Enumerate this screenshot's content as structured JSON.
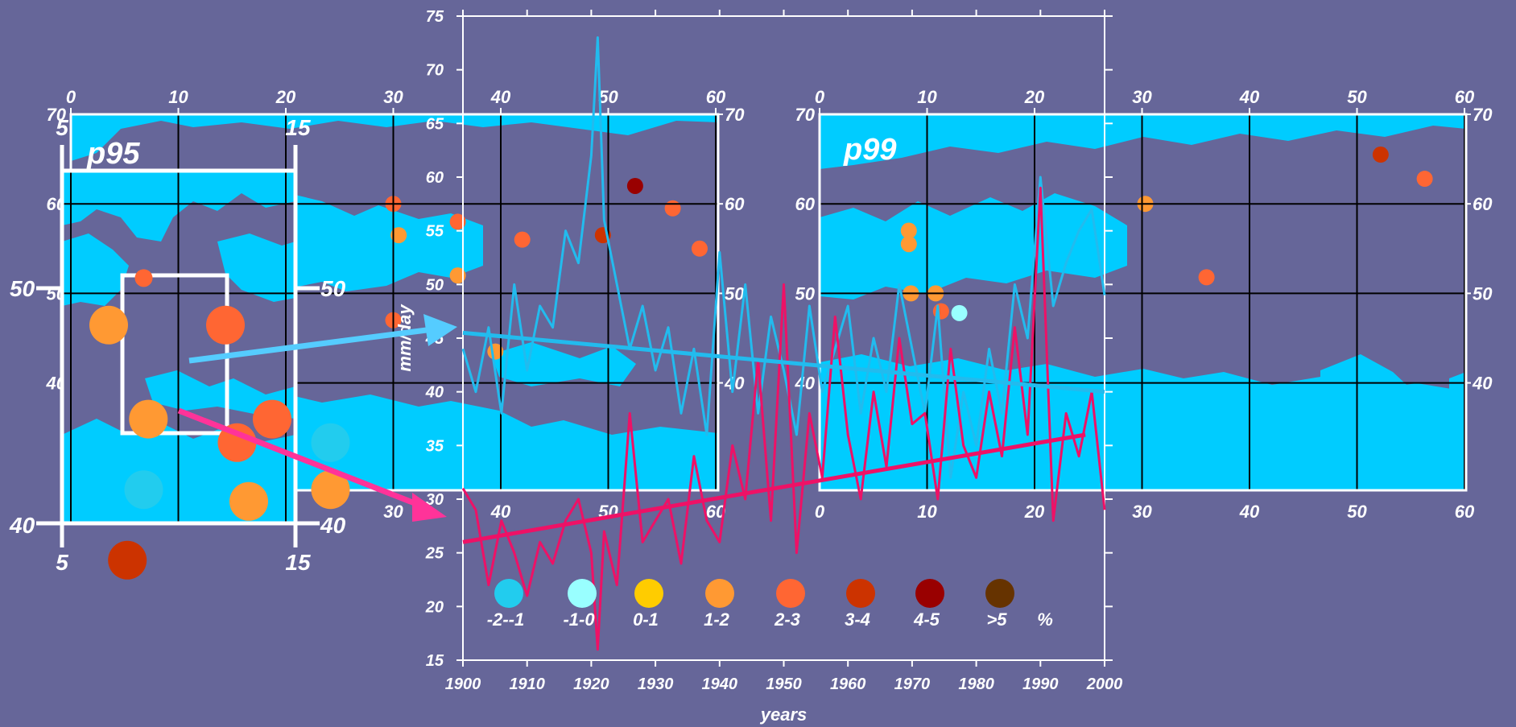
{
  "chart_data": [
    {
      "type": "line",
      "ylabel": "mm/day",
      "xlabel": "years",
      "xlim": [
        1900,
        2000
      ],
      "ylim": [
        15,
        75
      ],
      "x_ticks": [
        1900,
        1910,
        1920,
        1930,
        1940,
        1950,
        1960,
        1970,
        1980,
        1990,
        2000
      ],
      "y_ticks": [
        15,
        20,
        25,
        30,
        35,
        40,
        45,
        50,
        55,
        60,
        65,
        70,
        75
      ],
      "series": [
        {
          "name": "p95",
          "color": "#22bbee",
          "x": [
            1900,
            1902,
            1904,
            1906,
            1908,
            1910,
            1912,
            1914,
            1916,
            1918,
            1920,
            1921,
            1922,
            1924,
            1926,
            1928,
            1930,
            1932,
            1934,
            1936,
            1938,
            1940,
            1942,
            1944,
            1946,
            1948,
            1950,
            1952,
            1954,
            1956,
            1958,
            1960,
            1962,
            1964,
            1966,
            1968,
            1970,
            1972,
            1974,
            1976,
            1978,
            1980,
            1982,
            1984,
            1986,
            1988,
            1990,
            1992,
            1994,
            1996,
            1998,
            2000
          ],
          "values": [
            44,
            40,
            46,
            38,
            50,
            42,
            48,
            46,
            55,
            52,
            62,
            73,
            56,
            50,
            44,
            48,
            42,
            46,
            38,
            44,
            36,
            53,
            40,
            50,
            38,
            47,
            42,
            36,
            48,
            40,
            44,
            48,
            38,
            45,
            40,
            50,
            44,
            38,
            48,
            32,
            40,
            35,
            44,
            38,
            50,
            45,
            60,
            48,
            52,
            55,
            57,
            49
          ]
        },
        {
          "name": "p99",
          "color": "#ee1166",
          "x": [
            1900,
            1902,
            1904,
            1906,
            1908,
            1910,
            1912,
            1914,
            1916,
            1918,
            1920,
            1921,
            1922,
            1924,
            1926,
            1928,
            1930,
            1932,
            1934,
            1936,
            1938,
            1940,
            1942,
            1944,
            1946,
            1948,
            1950,
            1952,
            1954,
            1956,
            1958,
            1960,
            1962,
            1964,
            1966,
            1968,
            1970,
            1972,
            1974,
            1976,
            1978,
            1980,
            1982,
            1984,
            1986,
            1988,
            1990,
            1992,
            1994,
            1996,
            1998,
            2000
          ],
          "values": [
            31,
            29,
            22,
            28,
            25,
            21,
            26,
            24,
            28,
            30,
            25,
            16,
            27,
            22,
            38,
            26,
            28,
            30,
            24,
            34,
            28,
            26,
            35,
            30,
            43,
            28,
            50,
            25,
            38,
            32,
            47,
            36,
            30,
            40,
            33,
            45,
            37,
            38,
            30,
            44,
            35,
            32,
            40,
            34,
            46,
            36,
            59,
            28,
            38,
            34,
            40,
            29
          ]
        }
      ],
      "trend_lines": [
        {
          "series": "p95",
          "from": [
            1900,
            45.5
          ],
          "to": [
            2000,
            40
          ]
        },
        {
          "series": "p99",
          "from": [
            1900,
            26
          ],
          "to": [
            1997,
            36
          ]
        }
      ]
    },
    {
      "type": "scatter",
      "title": "p95",
      "legend_labels": [
        "-2--1",
        "-1-0",
        "0-1",
        "1-2",
        "2-3",
        "3-4",
        "4-5",
        ">5"
      ],
      "legend_unit": "%",
      "legend_colors": [
        "#22ccee",
        "#99ffff",
        "#ffcc00",
        "#ff9933",
        "#ff6633",
        "#cc3300",
        "#990000",
        "#663300"
      ],
      "lon_ticks": [
        0,
        10,
        20,
        30,
        40,
        50,
        60
      ],
      "lat_ticks": [
        40,
        50,
        60,
        70
      ],
      "inset_lon_ticks": [
        5,
        15
      ],
      "inset_lat_ticks": [
        40,
        50
      ],
      "points": [
        {
          "lon": 7,
          "lat": 54,
          "cls": 3
        },
        {
          "lon": 12,
          "lat": 54,
          "cls": 4
        },
        {
          "lon": 12.5,
          "lat": 49,
          "cls": 4
        },
        {
          "lon": 14,
          "lat": 50,
          "cls": 4
        },
        {
          "lon": 16.5,
          "lat": 47,
          "cls": 3
        },
        {
          "lon": 16.5,
          "lat": 49,
          "cls": 0
        },
        {
          "lon": 8.5,
          "lat": 47,
          "cls": 0
        },
        {
          "lon": 7.8,
          "lat": 44,
          "cls": 5
        },
        {
          "lon": 8.5,
          "lat": 56,
          "cls": 4
        },
        {
          "lon": 8.7,
          "lat": 50,
          "cls": 3
        },
        {
          "lon": 13,
          "lat": 46.5,
          "cls": 3
        },
        {
          "lon": 30,
          "lat": 60,
          "cls": 4
        },
        {
          "lon": 30.5,
          "lat": 56.5,
          "cls": 3
        },
        {
          "lon": 30,
          "lat": 47,
          "cls": 4
        },
        {
          "lon": 36,
          "lat": 58,
          "cls": 4
        },
        {
          "lon": 42,
          "lat": 56,
          "cls": 4
        },
        {
          "lon": 52.5,
          "lat": 62,
          "cls": 6
        },
        {
          "lon": 56,
          "lat": 59.5,
          "cls": 4
        },
        {
          "lon": 58.5,
          "lat": 55,
          "cls": 4
        },
        {
          "lon": 49.5,
          "lat": 56.5,
          "cls": 5
        },
        {
          "lon": 36,
          "lat": 52,
          "cls": 3
        },
        {
          "lon": 39.5,
          "lat": 43.5,
          "cls": 3
        }
      ]
    },
    {
      "type": "scatter",
      "title": "p99",
      "lon_ticks": [
        0,
        10,
        20,
        30,
        40,
        50,
        60
      ],
      "lat_ticks": [
        40,
        50,
        60,
        70
      ],
      "points": [
        {
          "lon": 8.3,
          "lat": 57,
          "cls": 3
        },
        {
          "lon": 8.3,
          "lat": 55.5,
          "cls": 3
        },
        {
          "lon": 8.5,
          "lat": 50,
          "cls": 3
        },
        {
          "lon": 10.8,
          "lat": 50,
          "cls": 3
        },
        {
          "lon": 11.3,
          "lat": 48,
          "cls": 4
        },
        {
          "lon": 13,
          "lat": 47.8,
          "cls": 1
        },
        {
          "lon": 30.3,
          "lat": 60,
          "cls": 3
        },
        {
          "lon": 36,
          "lat": 51.8,
          "cls": 4
        },
        {
          "lon": 52.2,
          "lat": 65.5,
          "cls": 5
        },
        {
          "lon": 56.3,
          "lat": 62.8,
          "cls": 4
        }
      ]
    }
  ]
}
